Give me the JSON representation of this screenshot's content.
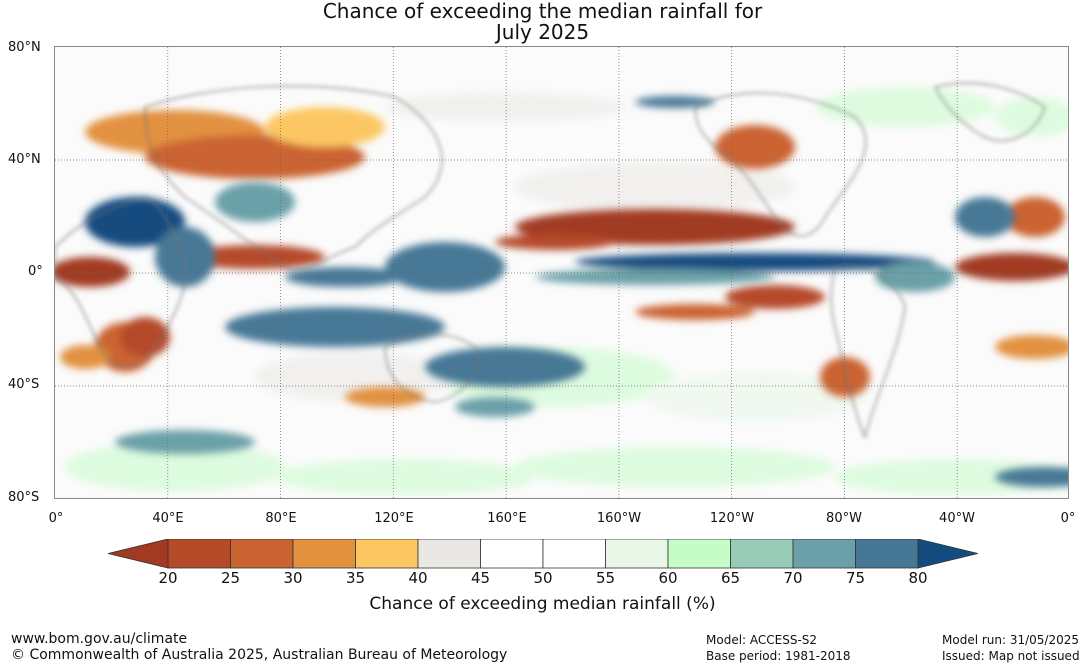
{
  "title": {
    "line1": "Chance of exceeding the median rainfall for",
    "line2": "July 2025"
  },
  "lat_labels": [
    "80°N",
    "40°N",
    "0°",
    "40°S",
    "80°S"
  ],
  "lon_labels": [
    "0°",
    "40°E",
    "80°E",
    "120°E",
    "160°E",
    "160°W",
    "120°W",
    "80°W",
    "40°W",
    "0°"
  ],
  "colorbar": {
    "label": "Chance of exceeding median rainfall (%)",
    "ticks": [
      "20",
      "25",
      "30",
      "35",
      "40",
      "45",
      "50",
      "55",
      "60",
      "65",
      "70",
      "75",
      "80"
    ],
    "colors": [
      "#a13a21",
      "#b54a29",
      "#cb6433",
      "#e2913f",
      "#fcc762",
      "#e9e8e4",
      "#ffffff",
      "#ffffff",
      "#e8f6e8",
      "#c6fcc8",
      "#99ccb7",
      "#6ba0a8",
      "#467896",
      "#154c80"
    ]
  },
  "footer": {
    "url": "www.bom.gov.au/climate",
    "copyright": "© Commonwealth of Australia 2025, Australian Bureau of Meteorology",
    "model": "Model: ACCESS-S2",
    "base_period": "Base period: 1981-2018",
    "model_run": "Model run: 31/05/2025",
    "issued": "Issued: Map not issued"
  }
}
